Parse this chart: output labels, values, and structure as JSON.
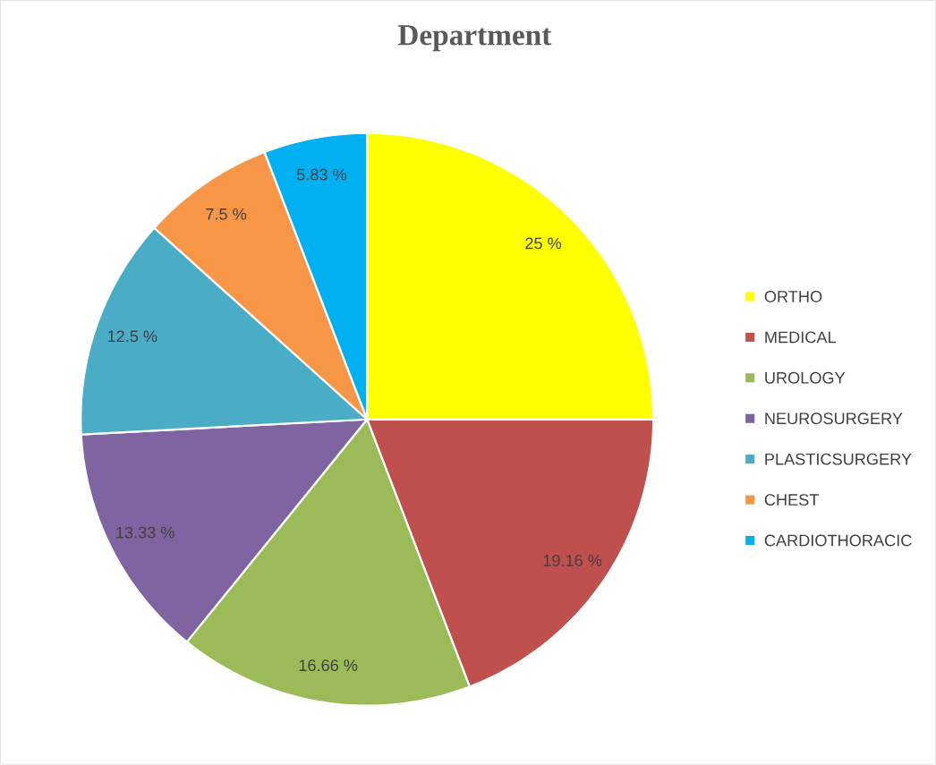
{
  "chart_data": {
    "type": "pie",
    "title": "Department",
    "categories": [
      "ORTHO",
      "MEDICAL",
      "UROLOGY",
      "NEUROSURGERY",
      "PLASTICSURGERY",
      "CHEST",
      "CARDIOTHORACIC"
    ],
    "values": [
      25,
      19.16,
      16.66,
      13.33,
      12.5,
      7.5,
      5.83
    ],
    "value_labels": [
      "25 %",
      "19.16 %",
      "16.66 %",
      "13.33 %",
      "12.5 %",
      "7.5 %",
      "5.83 %"
    ],
    "colors": [
      "#ffff00",
      "#c0504d",
      "#9bbb59",
      "#8064a2",
      "#4bacc6",
      "#f79646",
      "#00b0f0"
    ],
    "legend": "right"
  }
}
